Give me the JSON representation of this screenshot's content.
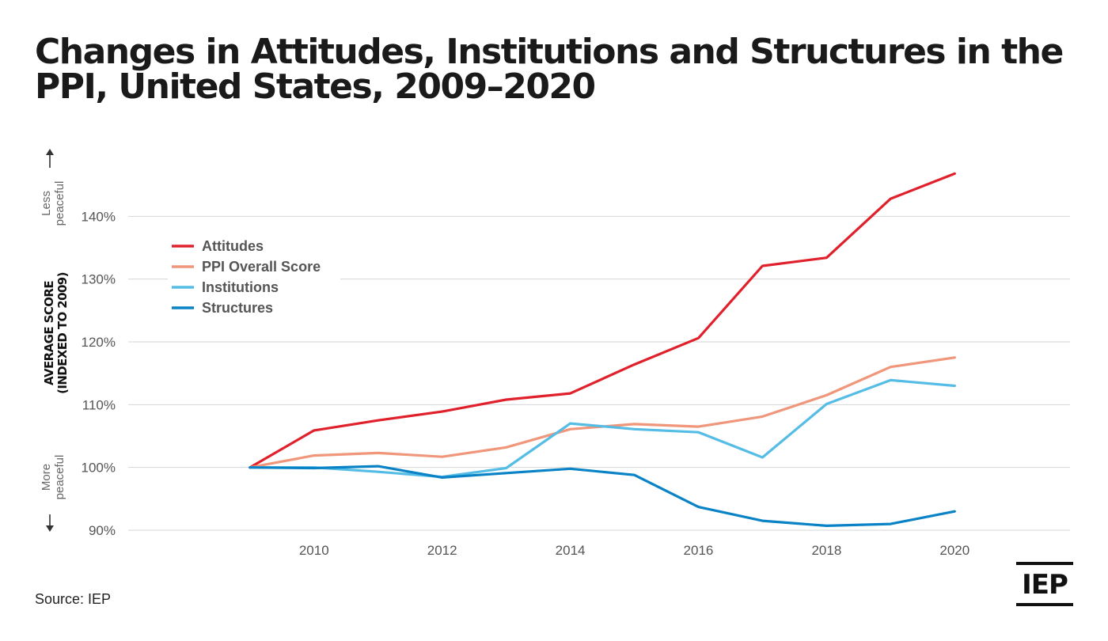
{
  "title_lines": [
    "Changes in Attitudes, Institutions and Structures in the",
    "PPI, United States, 2009–2020"
  ],
  "source": "Source: IEP",
  "logo_text": "IEP",
  "axis_notes": {
    "top_line1": "Less",
    "top_line2": "peaceful",
    "bottom_line1": "More",
    "bottom_line2": "peaceful"
  },
  "chart_data": {
    "type": "line",
    "ylabel_line1": "AVERAGE SCORE",
    "ylabel_line2": "(INDEXED TO 2009)",
    "x": [
      2009,
      2010,
      2011,
      2012,
      2013,
      2014,
      2015,
      2016,
      2017,
      2018,
      2019,
      2020
    ],
    "xlim": [
      2007.1,
      2021.8
    ],
    "xticks": [
      2010,
      2012,
      2014,
      2016,
      2018,
      2020
    ],
    "ylim": [
      90,
      150
    ],
    "yticks": [
      90,
      100,
      110,
      120,
      130,
      140
    ],
    "ytick_labels": [
      "90%",
      "100%",
      "110%",
      "120%",
      "130%",
      "140%"
    ],
    "grid": true,
    "legend_position": "top-left",
    "series": [
      {
        "name": "Attitudes",
        "color": "#e0202b",
        "values": [
          100,
          105.9,
          107.5,
          108.9,
          110.8,
          111.8,
          116.4,
          120.6,
          132.1,
          133.4,
          142.8,
          146.8
        ]
      },
      {
        "name": "PPI Overall Score",
        "color": "#f0967a",
        "values": [
          100,
          101.9,
          102.3,
          101.7,
          103.2,
          106.1,
          106.9,
          106.5,
          108.1,
          111.5,
          116.0,
          117.5
        ]
      },
      {
        "name": "Institutions",
        "color": "#55bde5",
        "values": [
          100,
          100.0,
          99.3,
          98.5,
          99.9,
          107.0,
          106.1,
          105.6,
          101.6,
          110.1,
          113.9,
          113.0
        ]
      },
      {
        "name": "Structures",
        "color": "#0a83c6",
        "values": [
          100,
          99.9,
          100.2,
          98.4,
          99.1,
          99.8,
          98.8,
          93.7,
          91.5,
          90.7,
          91.0,
          93.0
        ]
      }
    ]
  }
}
